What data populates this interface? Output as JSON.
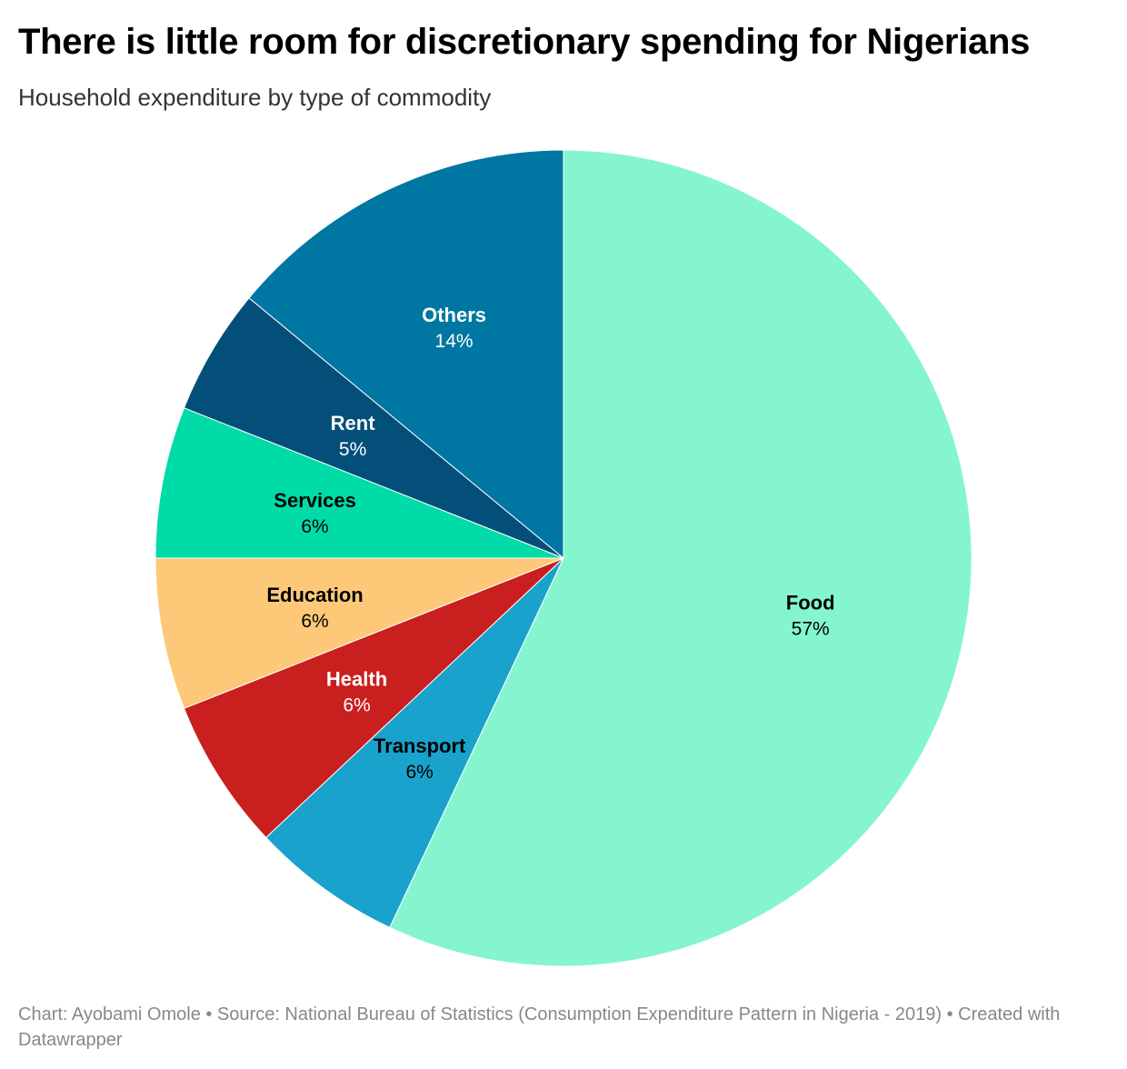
{
  "header": {
    "title": "There is little room for discretionary spending for Nigerians",
    "subtitle": "Household expenditure by type of commodity"
  },
  "chart_data": {
    "type": "pie",
    "title": "There is little room for discretionary spending for Nigerians",
    "subtitle": "Household expenditure by type of commodity",
    "slices": [
      {
        "name": "Food",
        "value": 57,
        "label": "57%",
        "color": "#84f5cf",
        "text_color": "#000000"
      },
      {
        "name": "Transport",
        "value": 6,
        "label": "6%",
        "color": "#19a2cc",
        "text_color": "#000000"
      },
      {
        "name": "Health",
        "value": 6,
        "label": "6%",
        "color": "#c91f1f",
        "text_color": "#ffffff"
      },
      {
        "name": "Education",
        "value": 6,
        "label": "6%",
        "color": "#fdc978",
        "text_color": "#000000"
      },
      {
        "name": "Services",
        "value": 6,
        "label": "6%",
        "color": "#00dba8",
        "text_color": "#000000"
      },
      {
        "name": "Rent",
        "value": 5,
        "label": "5%",
        "color": "#034f7a",
        "text_color": "#ffffff"
      },
      {
        "name": "Others",
        "value": 14,
        "label": "14%",
        "color": "#0077a3",
        "text_color": "#ffffff"
      }
    ]
  },
  "footer": {
    "text": "Chart: Ayobami Omole • Source: National Bureau of Statistics (Consumption Expenditure Pattern in Nigeria - 2019) • Created with Datawrapper"
  }
}
